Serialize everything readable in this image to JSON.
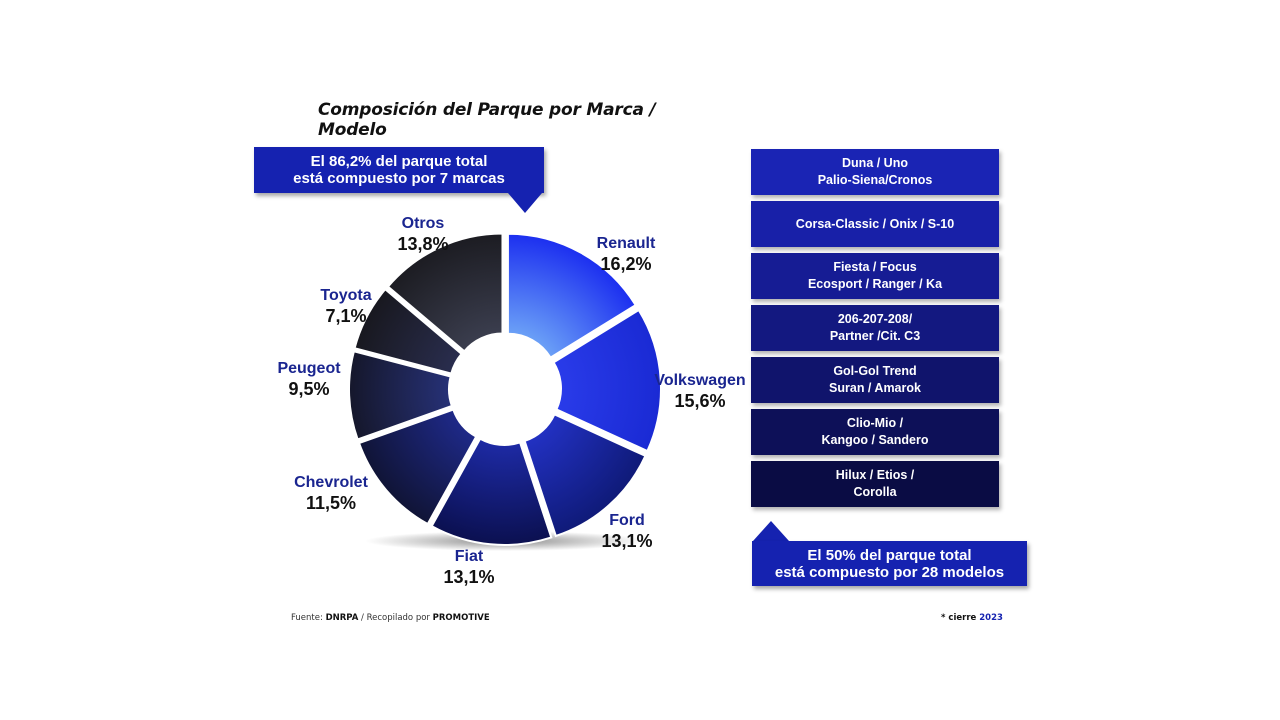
{
  "title": "Composición del Parque por Marca / Modelo",
  "callout_top": {
    "line1": "El 86,2% del parque total",
    "line2": "está compuesto por 7 marcas"
  },
  "callout_bottom": {
    "line1": "El 50% del parque total",
    "line2": "está compuesto por 28 modelos"
  },
  "chart_data": {
    "type": "pie",
    "variant": "exploded donut",
    "start": "12 o'clock, clockwise",
    "slices": [
      {
        "name": "Renault",
        "value": 16.2,
        "label": "16,2%",
        "color_outer": "#1c2ff0",
        "color_inner": "#6fa6f7"
      },
      {
        "name": "Volkswagen",
        "value": 15.6,
        "label": "15,6%",
        "color_outer": "#1a2ad4",
        "color_inner": "#2a3cea"
      },
      {
        "name": "Ford",
        "value": 13.1,
        "label": "13,1%",
        "color_outer": "#0f1a78",
        "color_inner": "#2332c6"
      },
      {
        "name": "Fiat",
        "value": 13.1,
        "label": "13,1%",
        "color_outer": "#0b1050",
        "color_inner": "#1e2ba8"
      },
      {
        "name": "Chevrolet",
        "value": 11.5,
        "label": "11,5%",
        "color_outer": "#101436",
        "color_inner": "#1f2a8c"
      },
      {
        "name": "Peugeot",
        "value": 9.5,
        "label": "9,5%",
        "color_outer": "#15172b",
        "color_inner": "#27327a"
      },
      {
        "name": "Toyota",
        "value": 7.1,
        "label": "7,1%",
        "color_outer": "#18181f",
        "color_inner": "#2a2e50"
      },
      {
        "name": "Otros",
        "value": 13.8,
        "label": "13,8%",
        "color_outer": "#1c1c22",
        "color_inner": "#3c3f50"
      }
    ]
  },
  "models": [
    {
      "line1": "Duna / Uno",
      "line2": "Palio-Siena/Cronos",
      "color": "#1a24b4"
    },
    {
      "line1": "Corsa-Classic / Onix / S-10",
      "line2": "",
      "color": "#1820a8"
    },
    {
      "line1": "Fiesta / Focus",
      "line2": "Ecosport / Ranger / Ka",
      "color": "#161c94"
    },
    {
      "line1": "206-207-208/",
      "line2": "Partner /Cit. C3",
      "color": "#131880"
    },
    {
      "line1": "Gol-Gol Trend",
      "line2": "Suran / Amarok",
      "color": "#10146c"
    },
    {
      "line1": "Clio-Mio /",
      "line2": "Kangoo / Sandero",
      "color": "#0d1058"
    },
    {
      "line1": "Hilux / Etios /",
      "line2": "Corolla",
      "color": "#0a0c44"
    }
  ],
  "footer": {
    "source_prefix": "Fuente: ",
    "source": "DNRPA",
    "compiled_prefix": " / Recopilado por ",
    "compiled": "PROMOTIVE",
    "note": "* cierre ",
    "year": "2023"
  }
}
